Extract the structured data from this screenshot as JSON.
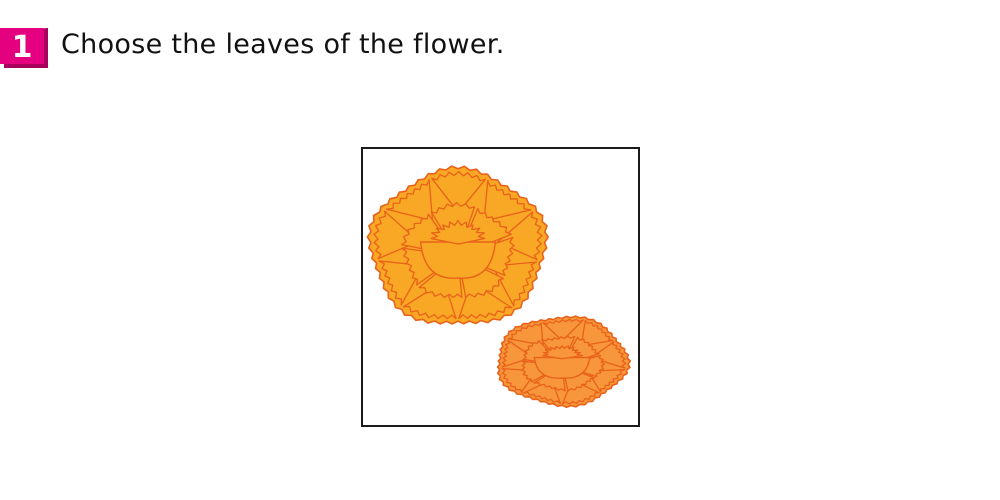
{
  "question": {
    "number": "1",
    "text": "Choose the leaves of the flower."
  },
  "illustration": {
    "subject": "carnation flower heads",
    "petal_fill": "#f9a825",
    "petal_fill_small": "#f7963a",
    "outline_color": "#e8621a",
    "frame_color": "#1a1a1a"
  },
  "colors": {
    "badge": "#e4007f",
    "badge_shadow": "#a8005c",
    "text": "#111111"
  }
}
